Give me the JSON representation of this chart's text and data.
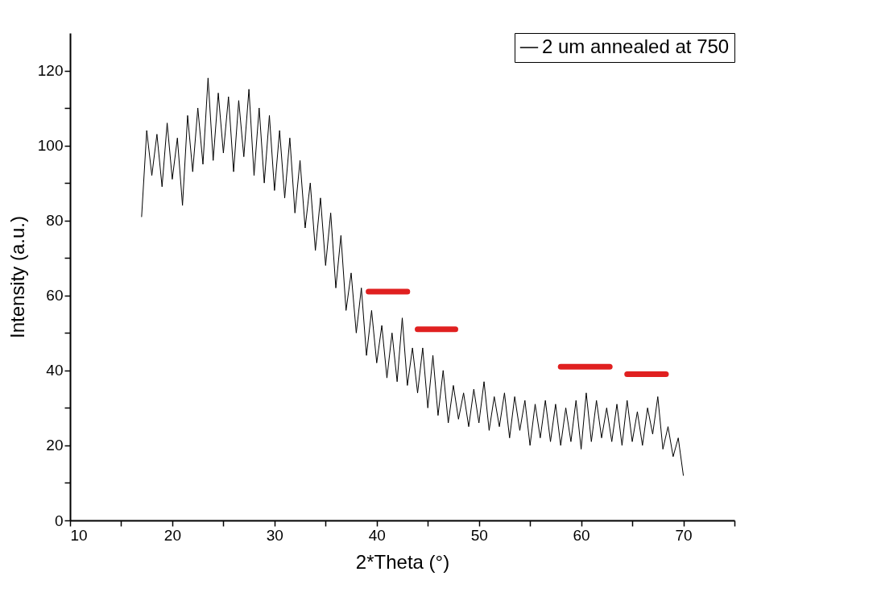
{
  "chart_data": {
    "type": "line",
    "xlabel": "2*Theta (°)",
    "ylabel": "Intensity (a.u.)",
    "xlim": [
      10,
      75
    ],
    "xticks": [
      10,
      {
        "value": 15,
        "label": null
      },
      20,
      {
        "value": 25,
        "label": null
      },
      30,
      {
        "value": 35,
        "label": null
      },
      40,
      {
        "value": 45,
        "label": null
      },
      50,
      {
        "value": 55,
        "label": null
      },
      60,
      {
        "value": 65,
        "label": null
      },
      70,
      {
        "value": 75,
        "label": null
      }
    ],
    "ylim": [
      0,
      130
    ],
    "yticks": [
      0,
      {
        "value": 10,
        "label": null
      },
      20,
      {
        "value": 30,
        "label": null
      },
      40,
      {
        "value": 50,
        "label": null
      },
      60,
      {
        "value": 70,
        "label": null
      },
      80,
      {
        "value": 90,
        "label": null
      },
      100,
      {
        "value": 110,
        "label": null
      },
      120
    ],
    "grid": false,
    "legend": "top right",
    "line_style": "solid",
    "series": [
      {
        "name": "2 um annealed at 750",
        "color": "#000000",
        "x": [
          17,
          17.5,
          18,
          18.5,
          19,
          19.5,
          20,
          20.5,
          21,
          21.5,
          22,
          22.5,
          23,
          23.5,
          24,
          24.5,
          25,
          25.5,
          26,
          26.5,
          27,
          27.5,
          28,
          28.5,
          29,
          29.5,
          30,
          30.5,
          31,
          31.5,
          32,
          32.5,
          33,
          33.5,
          34,
          34.5,
          35,
          35.5,
          36,
          36.5,
          37,
          37.5,
          38,
          38.5,
          39,
          39.5,
          40,
          40.5,
          41,
          41.5,
          42,
          42.5,
          43,
          43.5,
          44,
          44.5,
          45,
          45.5,
          46,
          46.5,
          47,
          47.5,
          48,
          48.5,
          49,
          49.5,
          50,
          50.5,
          51,
          51.5,
          52,
          52.5,
          53,
          53.5,
          54,
          54.5,
          55,
          55.5,
          56,
          56.5,
          57,
          57.5,
          58,
          58.5,
          59,
          59.5,
          60,
          60.5,
          61,
          61.5,
          62,
          62.5,
          63,
          63.5,
          64,
          64.5,
          65,
          65.5,
          66,
          66.5,
          67,
          67.5,
          68,
          68.5,
          69,
          69.5,
          70
        ],
        "values": [
          81,
          104,
          92,
          103,
          89,
          106,
          91,
          102,
          84,
          108,
          93,
          110,
          95,
          118,
          96,
          114,
          98,
          113,
          93,
          112,
          97,
          115,
          92,
          110,
          90,
          108,
          88,
          104,
          86,
          102,
          82,
          96,
          78,
          90,
          72,
          86,
          68,
          82,
          62,
          76,
          56,
          66,
          50,
          62,
          44,
          56,
          42,
          52,
          38,
          50,
          37,
          54,
          36,
          46,
          34,
          46,
          30,
          44,
          28,
          40,
          26,
          36,
          27,
          34,
          25,
          35,
          26,
          37,
          24,
          33,
          25,
          34,
          22,
          33,
          24,
          32,
          20,
          31,
          22,
          32,
          21,
          31,
          20,
          30,
          21,
          32,
          19,
          34,
          21,
          32,
          22,
          30,
          21,
          31,
          20,
          32,
          21,
          29,
          20,
          30,
          23,
          33,
          19,
          25,
          17,
          22,
          12
        ]
      },
      {
        "type": "line",
        "color": "#e02020",
        "x": [
          39.2,
          43.0
        ],
        "values": [
          61,
          61
        ]
      },
      {
        "type": "line",
        "color": "#e02020",
        "x": [
          44.0,
          47.7
        ],
        "values": [
          51,
          51
        ]
      },
      {
        "type": "line",
        "color": "#e02020",
        "x": [
          58.0,
          62.8
        ],
        "values": [
          41,
          41
        ]
      },
      {
        "type": "line",
        "color": "#e02020",
        "x": [
          64.5,
          68.3
        ],
        "values": [
          39,
          39
        ]
      }
    ]
  }
}
